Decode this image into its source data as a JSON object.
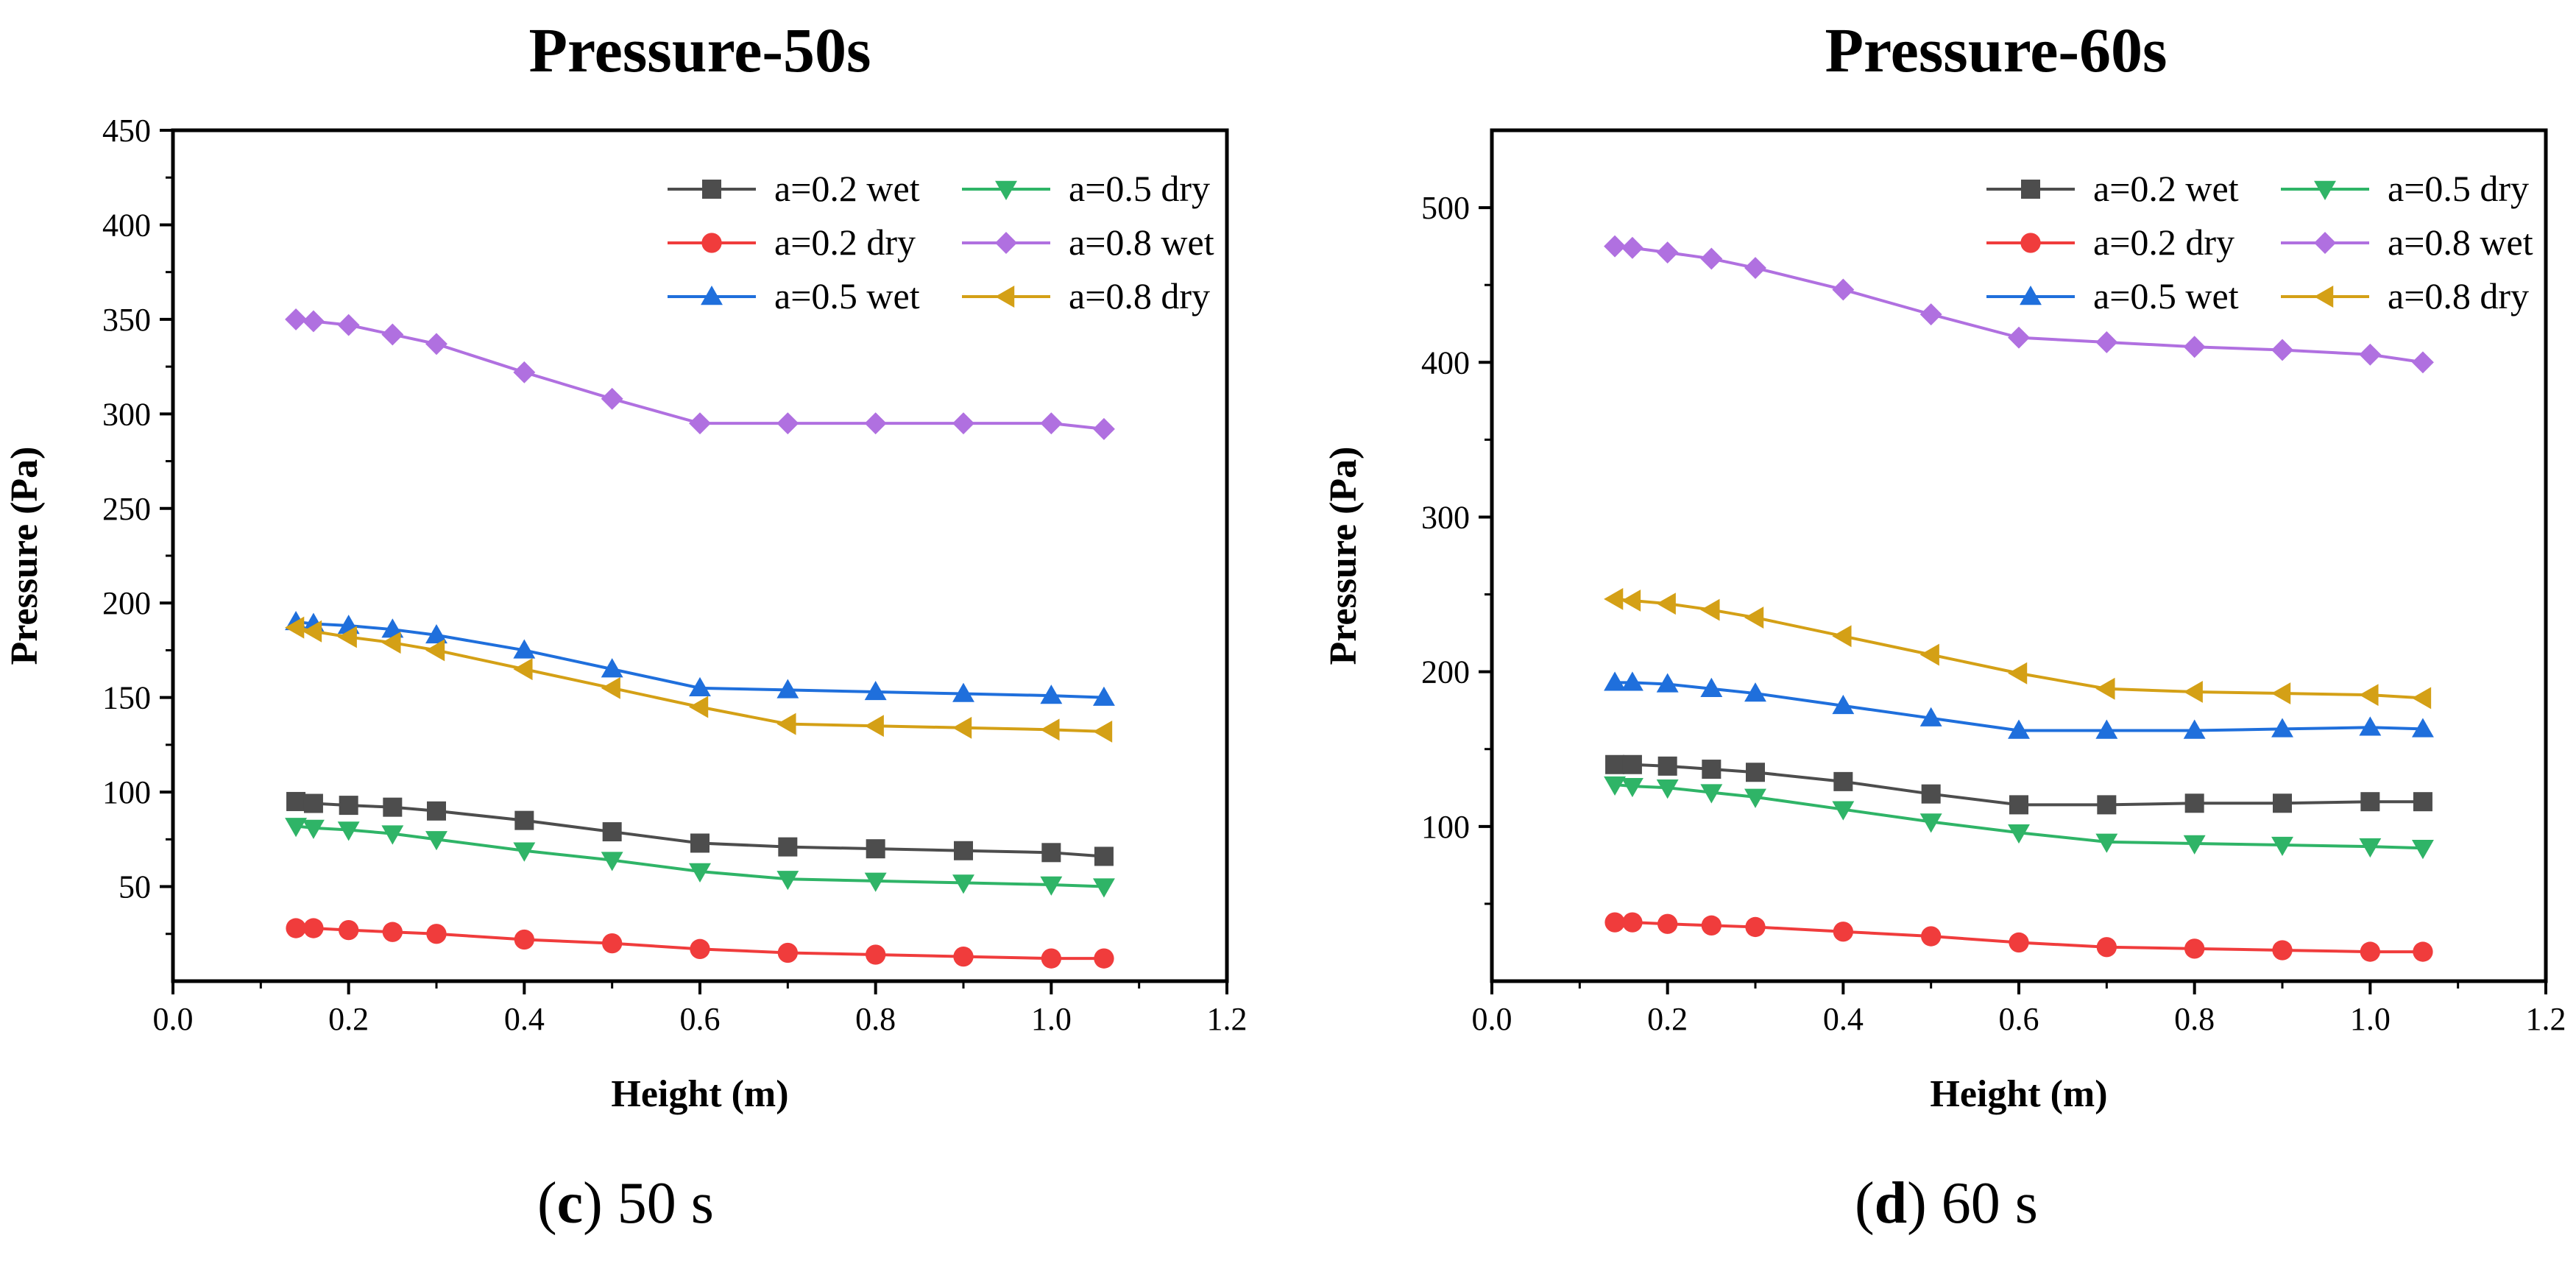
{
  "captions": [
    {
      "letter": "c",
      "text": "50 s"
    },
    {
      "letter": "d",
      "text": "60 s"
    }
  ],
  "chart_data": [
    {
      "type": "line",
      "title": "Pressure-50s",
      "xlabel": "Height (m)",
      "ylabel": "Pressure (Pa)",
      "xlim": [
        0.0,
        1.2
      ],
      "ylim": [
        0,
        450
      ],
      "xticks": [
        "0.0",
        "0.2",
        "0.4",
        "0.6",
        "0.8",
        "1.0",
        "1.2"
      ],
      "yticks": [
        "50",
        "100",
        "150",
        "200",
        "250",
        "300",
        "350",
        "400",
        "450"
      ],
      "ytick_values": [
        50,
        100,
        150,
        200,
        250,
        300,
        350,
        400,
        450
      ],
      "grid": false,
      "legend": "top-right",
      "x": [
        0.14,
        0.16,
        0.2,
        0.25,
        0.3,
        0.4,
        0.5,
        0.6,
        0.7,
        0.8,
        0.9,
        1.0,
        1.06
      ],
      "series": [
        {
          "name": "a=0.2 wet",
          "color": "#4d4d4d",
          "marker": "square",
          "values": [
            95,
            94,
            93,
            92,
            90,
            85,
            79,
            73,
            71,
            70,
            69,
            68,
            66
          ]
        },
        {
          "name": "a=0.2 dry",
          "color": "#f03c3c",
          "marker": "circle",
          "values": [
            28,
            28,
            27,
            26,
            25,
            22,
            20,
            17,
            15,
            14,
            13,
            12,
            12
          ]
        },
        {
          "name": "a=0.5 wet",
          "color": "#1f6fdc",
          "marker": "triangle-up",
          "values": [
            190,
            189,
            188,
            186,
            183,
            175,
            165,
            155,
            154,
            153,
            152,
            151,
            150
          ]
        },
        {
          "name": "a=0.5 dry",
          "color": "#2fb467",
          "marker": "triangle-down",
          "values": [
            82,
            81,
            80,
            78,
            75,
            69,
            64,
            58,
            54,
            53,
            52,
            51,
            50
          ]
        },
        {
          "name": "a=0.8 wet",
          "color": "#b070e0",
          "marker": "diamond",
          "values": [
            350,
            349,
            347,
            342,
            337,
            322,
            308,
            295,
            295,
            295,
            295,
            295,
            292
          ]
        },
        {
          "name": "a=0.8 dry",
          "color": "#d4a016",
          "marker": "triangle-left",
          "values": [
            187,
            185,
            182,
            179,
            175,
            165,
            155,
            145,
            136,
            135,
            134,
            133,
            132
          ]
        }
      ]
    },
    {
      "type": "line",
      "title": "Pressure-60s",
      "xlabel": "Height (m)",
      "ylabel": "Pressure (Pa)",
      "xlim": [
        0.0,
        1.2
      ],
      "ylim": [
        0,
        550
      ],
      "xticks": [
        "0.0",
        "0.2",
        "0.4",
        "0.6",
        "0.8",
        "1.0",
        "1.2"
      ],
      "yticks": [
        "100",
        "200",
        "300",
        "400",
        "500"
      ],
      "ytick_values": [
        100,
        200,
        300,
        400,
        500
      ],
      "grid": false,
      "legend": "top-right",
      "x": [
        0.14,
        0.16,
        0.2,
        0.25,
        0.3,
        0.4,
        0.5,
        0.6,
        0.7,
        0.8,
        0.9,
        1.0,
        1.06
      ],
      "series": [
        {
          "name": "a=0.2 wet",
          "color": "#4d4d4d",
          "marker": "square",
          "values": [
            140,
            140,
            139,
            137,
            135,
            129,
            121,
            114,
            114,
            115,
            115,
            116,
            116
          ]
        },
        {
          "name": "a=0.2 dry",
          "color": "#f03c3c",
          "marker": "circle",
          "values": [
            38,
            38,
            37,
            36,
            35,
            32,
            29,
            25,
            22,
            21,
            20,
            19,
            19
          ]
        },
        {
          "name": "a=0.5 wet",
          "color": "#1f6fdc",
          "marker": "triangle-up",
          "values": [
            193,
            193,
            192,
            189,
            186,
            178,
            170,
            162,
            162,
            162,
            163,
            164,
            163
          ]
        },
        {
          "name": "a=0.5 dry",
          "color": "#2fb467",
          "marker": "triangle-down",
          "values": [
            127,
            126,
            125,
            122,
            119,
            111,
            103,
            96,
            90,
            89,
            88,
            87,
            86
          ]
        },
        {
          "name": "a=0.8 wet",
          "color": "#b070e0",
          "marker": "diamond",
          "values": [
            475,
            474,
            471,
            467,
            461,
            447,
            431,
            416,
            413,
            410,
            408,
            405,
            400
          ]
        },
        {
          "name": "a=0.8 dry",
          "color": "#d4a016",
          "marker": "triangle-left",
          "values": [
            247,
            246,
            244,
            240,
            235,
            223,
            211,
            199,
            189,
            187,
            186,
            185,
            183
          ]
        }
      ]
    }
  ]
}
